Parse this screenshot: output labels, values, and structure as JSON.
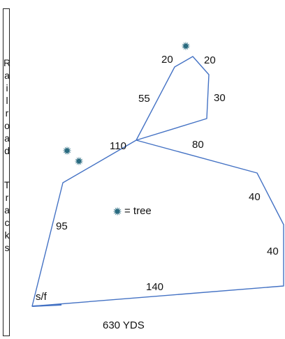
{
  "sidebar": {
    "letters": [
      "R",
      "a",
      "i",
      "l",
      "r",
      "o",
      "a",
      "d",
      "T",
      "r",
      "a",
      "c",
      "k",
      "s"
    ]
  },
  "diagram": {
    "segment_labels": [
      "20",
      "20",
      "55",
      "30",
      "110",
      "80",
      "40",
      "95",
      "40",
      "140"
    ],
    "start_finish_label": "s/f",
    "total_label": "630 YDS",
    "legend_label": "= tree",
    "tree_icon": "tree-icon",
    "line_color": "#4472c4",
    "tree_color": "#2a6b80"
  }
}
